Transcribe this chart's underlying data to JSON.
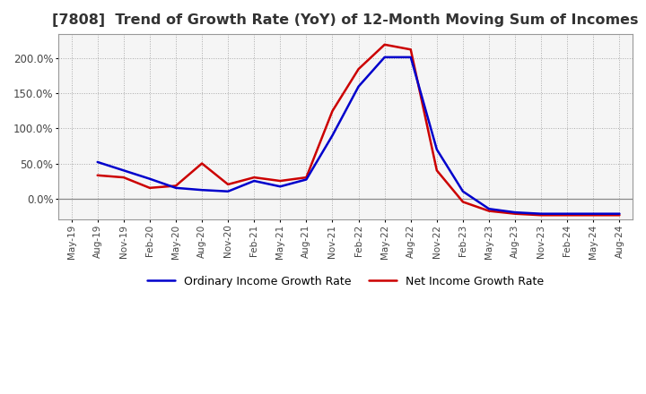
{
  "title": "[7808]  Trend of Growth Rate (YoY) of 12-Month Moving Sum of Incomes",
  "title_fontsize": 11.5,
  "legend_labels": [
    "Ordinary Income Growth Rate",
    "Net Income Growth Rate"
  ],
  "legend_colors": [
    "#0000cc",
    "#cc0000"
  ],
  "background_color": "#ffffff",
  "grid_color": "#aaaaaa",
  "plot_bg_color": "#f5f5f5",
  "x_labels": [
    "May-19",
    "Aug-19",
    "Nov-19",
    "Feb-20",
    "May-20",
    "Aug-20",
    "Nov-20",
    "Feb-21",
    "May-21",
    "Aug-21",
    "Nov-21",
    "Feb-22",
    "May-22",
    "Aug-22",
    "Nov-22",
    "Feb-23",
    "May-23",
    "Aug-23",
    "Nov-23",
    "Feb-24",
    "May-24",
    "Aug-24"
  ],
  "ordinary_income": [
    null,
    52,
    40,
    28,
    15,
    12,
    10,
    25,
    17,
    27,
    90,
    160,
    202,
    202,
    70,
    10,
    -15,
    -20,
    -22,
    -22,
    -22,
    -22
  ],
  "net_income": [
    null,
    33,
    30,
    15,
    18,
    50,
    20,
    30,
    25,
    30,
    125,
    185,
    220,
    213,
    40,
    -5,
    -18,
    -22,
    -24,
    -24,
    -24,
    -24
  ],
  "ylim": [
    -30,
    235
  ],
  "yticks": [
    0,
    50,
    100,
    150,
    200
  ],
  "ytick_labels": [
    "0.0%",
    "50.0%",
    "100.0%",
    "150.0%",
    "200.0%"
  ]
}
